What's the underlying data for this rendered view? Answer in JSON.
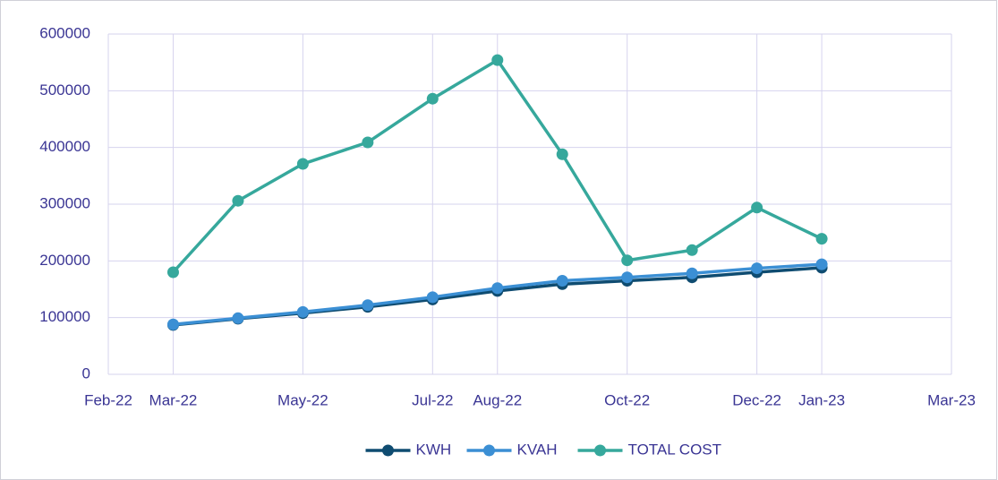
{
  "chart_data": {
    "type": "line",
    "x": [
      "2022-03",
      "2022-04",
      "2022-05",
      "2022-06",
      "2022-07",
      "2022-08",
      "2022-09",
      "2022-10",
      "2022-11",
      "2022-12",
      "2023-01"
    ],
    "series": [
      {
        "name": "KWH",
        "color": "#0f4c71",
        "values": [
          87000,
          98000,
          108000,
          119000,
          132000,
          147000,
          159000,
          165000,
          171000,
          180000,
          188000
        ]
      },
      {
        "name": "KVAH",
        "color": "#3b8fd4",
        "values": [
          88000,
          99000,
          110000,
          122000,
          136000,
          152000,
          165000,
          171000,
          178000,
          187000,
          194000
        ]
      },
      {
        "name": "TOTAL COST",
        "color": "#36a89c",
        "values": [
          180000,
          306000,
          371000,
          409000,
          486000,
          554000,
          388000,
          201000,
          219000,
          294000,
          239000
        ]
      }
    ],
    "xlim": [
      "2022-02",
      "2023-03"
    ],
    "xticks": [
      {
        "value": "2022-02",
        "label": "Feb-22"
      },
      {
        "value": "2022-03",
        "label": "Mar-22"
      },
      {
        "value": "2022-05",
        "label": "May-22"
      },
      {
        "value": "2022-07",
        "label": "Jul-22"
      },
      {
        "value": "2022-08",
        "label": "Aug-22"
      },
      {
        "value": "2022-10",
        "label": "Oct-22"
      },
      {
        "value": "2022-12",
        "label": "Dec-22"
      },
      {
        "value": "2023-01",
        "label": "Jan-23"
      },
      {
        "value": "2023-03",
        "label": "Mar-23"
      }
    ],
    "ylim": [
      0,
      600000
    ],
    "yticks": [
      0,
      100000,
      200000,
      300000,
      400000,
      500000,
      600000
    ],
    "grid": true,
    "legend": "bottom"
  }
}
